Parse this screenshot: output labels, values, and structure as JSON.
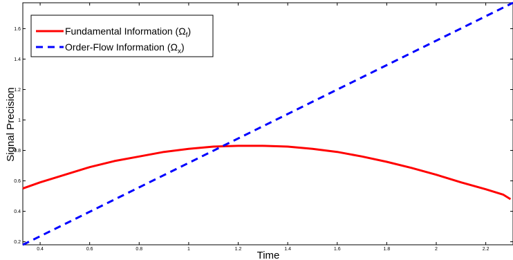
{
  "chart_data": {
    "type": "line",
    "xlabel": "Time",
    "ylabel": "Signal Precision",
    "xlim": [
      0.33,
      2.31
    ],
    "ylim": [
      0.18,
      1.77
    ],
    "xticks": [
      0.4,
      0.6,
      0.8,
      1,
      1.2,
      1.4,
      1.6,
      1.8,
      2,
      2.2
    ],
    "xtick_labels": [
      "0.4",
      "0.6",
      "0.8",
      "1",
      "1.2",
      "1.4",
      "1.6",
      "1.8",
      "2",
      "2.2"
    ],
    "yticks": [
      0.2,
      0.4,
      0.6,
      0.8,
      1.0,
      1.2,
      1.4,
      1.6
    ],
    "ytick_labels": [
      "0.2",
      "0.4",
      "0.6",
      "0.8",
      "1",
      "1.2",
      "1.4",
      "1.6"
    ],
    "grid": false,
    "legend_position": "top-left",
    "series": [
      {
        "name": "Fundamental Information (Ω",
        "name_sub": "f",
        "name_suffix": ")",
        "color": "#ff0000",
        "style": "solid",
        "x": [
          0.33,
          0.4,
          0.5,
          0.6,
          0.7,
          0.8,
          0.9,
          1.0,
          1.1,
          1.2,
          1.3,
          1.4,
          1.5,
          1.6,
          1.7,
          1.8,
          1.9,
          2.0,
          2.1,
          2.2,
          2.27,
          2.3
        ],
        "y": [
          0.55,
          0.59,
          0.64,
          0.69,
          0.73,
          0.76,
          0.79,
          0.81,
          0.825,
          0.83,
          0.83,
          0.825,
          0.81,
          0.79,
          0.76,
          0.725,
          0.685,
          0.64,
          0.59,
          0.545,
          0.51,
          0.48
        ]
      },
      {
        "name": "Order-Flow Information (Ω",
        "name_sub": "x",
        "name_suffix": ")",
        "color": "#0000ff",
        "style": "dashed",
        "x": [
          0.33,
          2.31
        ],
        "y": [
          0.18,
          1.77
        ]
      }
    ]
  }
}
